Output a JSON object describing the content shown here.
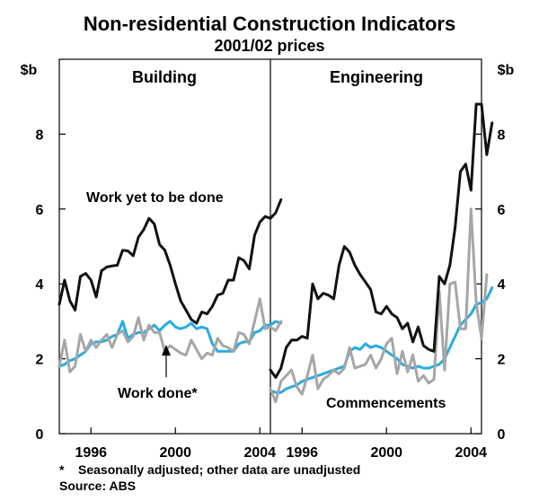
{
  "title": "Non-residential Construction Indicators",
  "subtitle": "2001/02 prices",
  "unit_left": "$b",
  "unit_right": "$b",
  "footnote": "*    Seasonally adjusted; other data are unadjusted",
  "source": "Source: ABS",
  "annotations": {
    "work_yet_to_be_done": "Work yet to be done",
    "work_done": "Work done*",
    "commencements": "Commencements"
  },
  "colors": {
    "work_yet_to_be_done": "#111111",
    "work_done": "#29abe2",
    "commencements": "#a6a6a6",
    "axis": "#000000"
  },
  "chart_data": [
    {
      "type": "line",
      "title": "Building",
      "xlabel": "",
      "ylabel": "$b",
      "x_start": 1994.5,
      "x_step": 0.25,
      "xticks": [
        1996,
        2000,
        2004
      ],
      "xtick_labels": [
        "1996",
        "2000",
        "2004"
      ],
      "xlim": [
        1994.5,
        2004.5
      ],
      "ylim": [
        0,
        10
      ],
      "yticks": [
        0,
        2,
        4,
        6,
        8
      ],
      "ytick_labels": [
        "0",
        "2",
        "4",
        "6",
        "8"
      ],
      "series": [
        {
          "name": "Work yet to be done",
          "color_key": "work_yet_to_be_done",
          "values": [
            3.45,
            4.1,
            3.55,
            3.3,
            4.2,
            4.28,
            4.1,
            3.65,
            4.35,
            4.45,
            4.48,
            4.5,
            4.9,
            4.88,
            4.75,
            5.25,
            5.45,
            5.75,
            5.6,
            5.05,
            4.9,
            4.5,
            4.0,
            3.55,
            3.3,
            3.05,
            2.95,
            3.25,
            3.2,
            3.4,
            3.7,
            3.75,
            4.1,
            4.1,
            4.7,
            4.62,
            4.4,
            5.3,
            5.65,
            5.8,
            5.75,
            5.9,
            6.25
          ]
        },
        {
          "name": "Work done*",
          "color_key": "work_done",
          "values": [
            1.8,
            1.85,
            1.95,
            2.0,
            2.1,
            2.2,
            2.4,
            2.45,
            2.45,
            2.5,
            2.6,
            2.65,
            3.0,
            2.55,
            2.65,
            2.7,
            2.7,
            2.8,
            2.9,
            2.75,
            2.9,
            3.0,
            2.85,
            2.8,
            2.85,
            2.95,
            2.8,
            2.85,
            2.8,
            2.4,
            2.2,
            2.2,
            2.2,
            2.2,
            2.4,
            2.45,
            2.45,
            2.7,
            2.75,
            2.9,
            2.9,
            3.0,
            2.95
          ]
        },
        {
          "name": "Commencements",
          "color_key": "commencements",
          "values": [
            1.8,
            2.5,
            1.65,
            1.8,
            2.65,
            2.2,
            2.5,
            2.3,
            2.5,
            2.65,
            2.3,
            2.65,
            2.75,
            2.45,
            2.6,
            3.1,
            2.5,
            2.9,
            2.7,
            2.7,
            2.2,
            2.35,
            2.25,
            2.15,
            2.1,
            2.5,
            2.25,
            2.0,
            2.15,
            2.1,
            2.55,
            2.35,
            2.3,
            2.2,
            2.7,
            2.65,
            2.4,
            3.0,
            3.6,
            2.8,
            2.85,
            2.75,
            3.0
          ]
        }
      ]
    },
    {
      "type": "line",
      "title": "Engineering",
      "xlabel": "",
      "ylabel": "$b",
      "x_start": 1994.5,
      "x_step": 0.25,
      "xticks": [
        1996,
        2000,
        2004
      ],
      "xtick_labels": [
        "1996",
        "2000",
        "2004"
      ],
      "xlim": [
        1994.5,
        2004.5
      ],
      "ylim": [
        0,
        10
      ],
      "yticks": [
        0,
        2,
        4,
        6,
        8
      ],
      "ytick_labels": [
        "0",
        "2",
        "4",
        "6",
        "8"
      ],
      "series": [
        {
          "name": "Work yet to be done",
          "color_key": "work_yet_to_be_done",
          "values": [
            1.7,
            1.5,
            1.75,
            2.3,
            2.5,
            2.5,
            2.6,
            2.55,
            4.0,
            3.6,
            3.75,
            3.7,
            3.6,
            4.5,
            5.0,
            4.85,
            4.5,
            4.25,
            4.05,
            3.85,
            3.25,
            3.2,
            3.4,
            3.2,
            3.1,
            2.8,
            2.95,
            2.45,
            2.85,
            2.35,
            2.25,
            2.2,
            4.2,
            4.0,
            4.5,
            5.5,
            7.0,
            7.2,
            6.5,
            8.8,
            8.8,
            7.45,
            8.3
          ]
        },
        {
          "name": "Work done*",
          "color_key": "work_done",
          "values": [
            1.15,
            1.1,
            1.1,
            1.2,
            1.25,
            1.3,
            1.4,
            1.45,
            1.5,
            1.55,
            1.6,
            1.65,
            1.7,
            1.75,
            1.8,
            2.2,
            2.3,
            2.25,
            2.4,
            2.3,
            2.35,
            2.3,
            2.2,
            2.1,
            2.0,
            1.85,
            1.8,
            1.75,
            1.8,
            1.75,
            1.75,
            1.8,
            1.85,
            2.0,
            2.3,
            2.6,
            2.9,
            3.05,
            3.2,
            3.45,
            3.5,
            3.6,
            3.9
          ]
        },
        {
          "name": "Commencements",
          "color_key": "commencements",
          "values": [
            1.2,
            0.85,
            1.4,
            1.55,
            1.7,
            1.25,
            1.05,
            1.55,
            2.1,
            1.2,
            1.45,
            1.55,
            1.7,
            1.6,
            1.75,
            2.3,
            1.75,
            1.8,
            1.85,
            2.1,
            1.75,
            2.0,
            2.4,
            2.55,
            1.6,
            2.2,
            1.65,
            2.1,
            1.4,
            1.55,
            1.35,
            1.45,
            3.8,
            1.7,
            4.0,
            4.05,
            2.8,
            2.8,
            6.0,
            3.5,
            2.55,
            4.25
          ]
        }
      ]
    }
  ]
}
